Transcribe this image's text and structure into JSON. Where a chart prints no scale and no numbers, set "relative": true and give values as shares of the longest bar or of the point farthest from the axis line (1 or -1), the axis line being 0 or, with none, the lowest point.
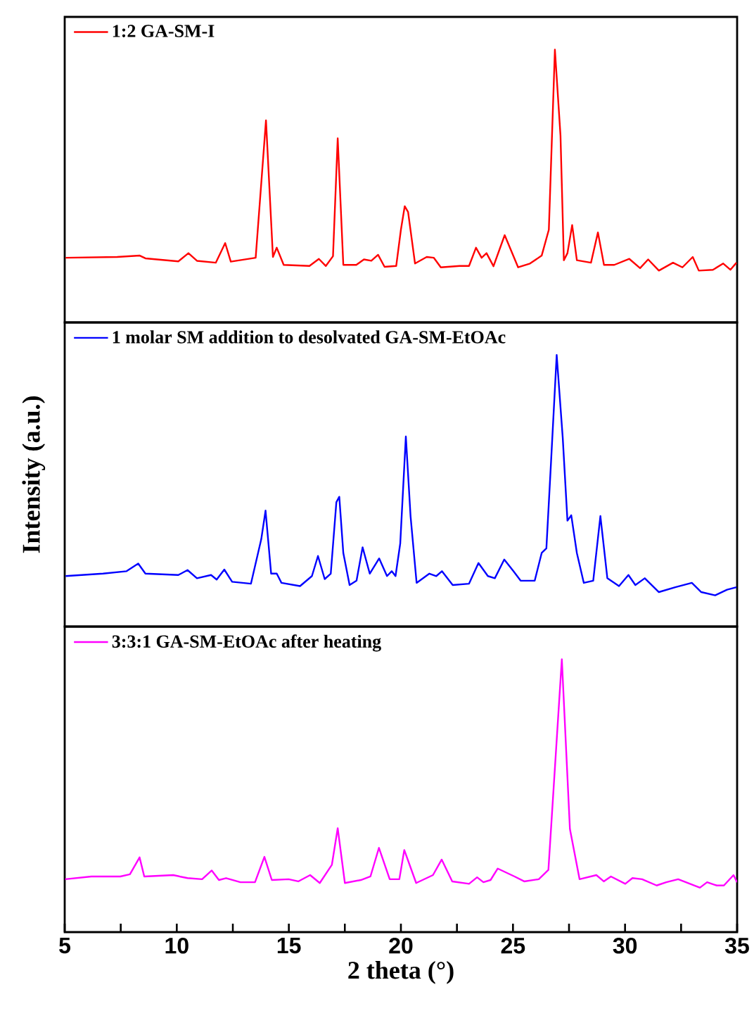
{
  "chart_data": [
    {
      "type": "line",
      "relative": true,
      "xlim": [
        5,
        35
      ],
      "tick_labels": false,
      "legend": "top left",
      "marker": "none",
      "line_style": "solid",
      "series": [
        {
          "name": "1:2 GA-SM-I",
          "color": "#ff0000",
          "x": [
            5.04,
            7.34,
            8.35,
            8.6,
            10.07,
            10.52,
            10.9,
            11.74,
            12.16,
            12.41,
            13.52,
            13.98,
            14.29,
            14.46,
            14.77,
            15.92,
            16.34,
            16.65,
            16.97,
            17.18,
            17.43,
            18.01,
            18.35,
            18.68,
            18.98,
            19.27,
            19.79,
            20.0,
            20.17,
            20.32,
            20.63,
            21.15,
            21.47,
            21.78,
            22.62,
            23.04,
            23.35,
            23.6,
            23.82,
            24.13,
            24.63,
            25.23,
            25.76,
            26.28,
            26.6,
            26.87,
            27.12,
            27.27,
            27.43,
            27.64,
            27.85,
            28.48,
            28.79,
            29.06,
            29.52,
            30.19,
            30.67,
            31.03,
            31.51,
            32.14,
            32.56,
            33.02,
            33.29,
            33.92,
            34.38,
            34.7,
            34.97
          ],
          "values": [
            0.237,
            0.24,
            0.245,
            0.235,
            0.224,
            0.254,
            0.226,
            0.219,
            0.291,
            0.223,
            0.237,
            0.741,
            0.24,
            0.274,
            0.211,
            0.207,
            0.233,
            0.207,
            0.243,
            0.675,
            0.211,
            0.211,
            0.231,
            0.226,
            0.248,
            0.204,
            0.207,
            0.34,
            0.426,
            0.405,
            0.216,
            0.24,
            0.237,
            0.202,
            0.207,
            0.207,
            0.274,
            0.237,
            0.254,
            0.206,
            0.32,
            0.202,
            0.216,
            0.245,
            0.34,
            1.0,
            0.685,
            0.228,
            0.254,
            0.357,
            0.228,
            0.219,
            0.33,
            0.211,
            0.211,
            0.233,
            0.199,
            0.231,
            0.19,
            0.219,
            0.202,
            0.24,
            0.19,
            0.193,
            0.216,
            0.193,
            0.219
          ]
        }
      ]
    },
    {
      "type": "line",
      "relative": true,
      "xlim": [
        5,
        35
      ],
      "tick_labels": false,
      "legend": "top left",
      "marker": "none",
      "line_style": "solid",
      "ylabel": "Intensity (a.u.)",
      "series": [
        {
          "name": "1 molar SM addition to desolvated GA-SM-EtOAc",
          "color": "#0000ff",
          "x": [
            5.04,
            6.71,
            7.76,
            8.28,
            8.6,
            10.07,
            10.48,
            10.9,
            11.53,
            11.78,
            12.12,
            12.47,
            13.31,
            13.77,
            13.96,
            14.21,
            14.46,
            14.67,
            15.5,
            16.03,
            16.3,
            16.6,
            16.87,
            17.12,
            17.25,
            17.43,
            17.71,
            18.02,
            18.29,
            18.61,
            19.03,
            19.38,
            19.59,
            19.76,
            19.97,
            20.22,
            20.43,
            20.7,
            21.27,
            21.58,
            21.83,
            22.31,
            23.04,
            23.46,
            23.88,
            24.19,
            24.61,
            25.02,
            25.34,
            25.97,
            26.28,
            26.49,
            26.7,
            26.95,
            27.22,
            27.43,
            27.6,
            27.85,
            28.16,
            28.58,
            28.9,
            29.21,
            29.73,
            30.15,
            30.46,
            30.88,
            31.51,
            32.24,
            32.98,
            33.4,
            34.02,
            34.55,
            34.97
          ],
          "values": [
            0.186,
            0.195,
            0.204,
            0.232,
            0.195,
            0.19,
            0.208,
            0.178,
            0.19,
            0.173,
            0.21,
            0.165,
            0.158,
            0.322,
            0.427,
            0.195,
            0.195,
            0.161,
            0.149,
            0.186,
            0.26,
            0.175,
            0.195,
            0.458,
            0.478,
            0.271,
            0.153,
            0.169,
            0.292,
            0.195,
            0.251,
            0.186,
            0.204,
            0.186,
            0.306,
            0.7,
            0.407,
            0.161,
            0.195,
            0.186,
            0.204,
            0.153,
            0.158,
            0.234,
            0.186,
            0.178,
            0.247,
            0.204,
            0.169,
            0.169,
            0.271,
            0.288,
            0.61,
            1.0,
            0.695,
            0.39,
            0.41,
            0.271,
            0.161,
            0.169,
            0.407,
            0.178,
            0.149,
            0.19,
            0.153,
            0.178,
            0.127,
            0.145,
            0.161,
            0.127,
            0.115,
            0.136,
            0.145
          ]
        }
      ]
    },
    {
      "type": "line",
      "relative": true,
      "xlim": [
        5,
        35
      ],
      "tick_labels": "x",
      "legend": "top left",
      "marker": "none",
      "line_style": "solid",
      "xlabel": "2 theta (°)",
      "xticks": [
        5,
        {
          "value": 7.5,
          "label": null
        },
        10,
        {
          "value": 12.5,
          "label": null
        },
        15,
        {
          "value": 17.5,
          "label": null
        },
        20,
        {
          "value": 22.5,
          "label": null
        },
        25,
        {
          "value": 27.5,
          "label": null
        },
        30,
        {
          "value": 32.5,
          "label": null
        },
        35
      ],
      "series": [
        {
          "name": "3:3:1 GA-SM-EtOAc after heating",
          "color": "#ff00ff",
          "x": [
            5.02,
            6.19,
            7.48,
            7.91,
            8.34,
            8.55,
            9.84,
            10.48,
            11.13,
            11.56,
            11.88,
            12.2,
            12.84,
            13.49,
            13.91,
            14.24,
            14.99,
            15.42,
            15.95,
            16.38,
            16.92,
            17.18,
            17.5,
            18.21,
            18.64,
            19.02,
            19.5,
            19.93,
            20.15,
            20.68,
            21.43,
            21.82,
            22.29,
            23.04,
            23.4,
            23.68,
            24.0,
            24.32,
            25.07,
            25.5,
            26.15,
            26.58,
            27.18,
            27.54,
            27.97,
            28.72,
            29.05,
            29.37,
            30.01,
            30.33,
            30.76,
            31.41,
            31.84,
            32.37,
            33.34,
            33.66,
            34.09,
            34.41,
            34.84,
            35.0
          ],
          "values": [
            0.194,
            0.204,
            0.204,
            0.212,
            0.274,
            0.204,
            0.209,
            0.198,
            0.194,
            0.226,
            0.191,
            0.198,
            0.183,
            0.183,
            0.276,
            0.191,
            0.194,
            0.186,
            0.209,
            0.18,
            0.247,
            0.381,
            0.18,
            0.191,
            0.204,
            0.309,
            0.194,
            0.194,
            0.301,
            0.18,
            0.209,
            0.266,
            0.186,
            0.177,
            0.201,
            0.183,
            0.191,
            0.233,
            0.204,
            0.186,
            0.194,
            0.228,
            1.0,
            0.378,
            0.194,
            0.209,
            0.186,
            0.204,
            0.177,
            0.198,
            0.194,
            0.171,
            0.183,
            0.194,
            0.163,
            0.183,
            0.171,
            0.171,
            0.209,
            0.183
          ]
        }
      ]
    }
  ]
}
